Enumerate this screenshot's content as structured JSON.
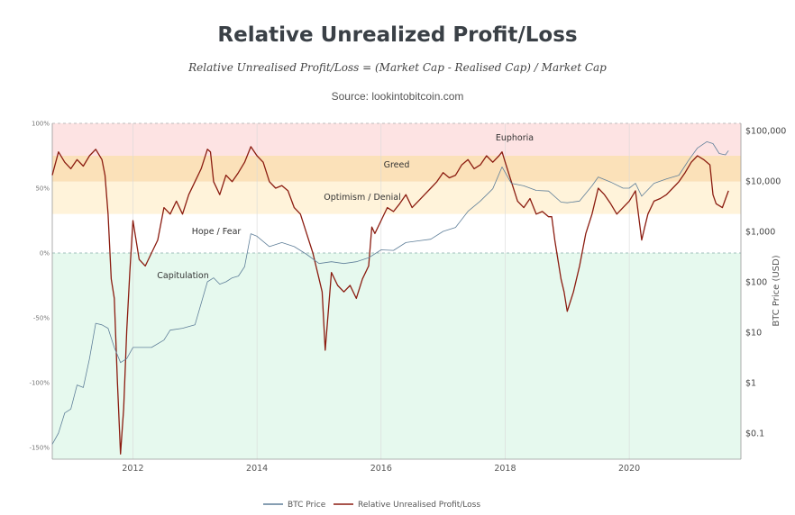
{
  "header": {
    "title": "Relative Unrealized Profit/Loss",
    "formula": "Relative Unrealised Profit/Loss = (Market Cap - Realised Cap) / Market Cap",
    "source": "Source: lookintobitcoin.com"
  },
  "chart_data": {
    "type": "line",
    "xlim": [
      2010.7,
      2021.8
    ],
    "x_ticks": [
      "2012",
      "2014",
      "2016",
      "2018",
      "2020"
    ],
    "y_left": {
      "range": [
        -160,
        100
      ],
      "ticks": [
        "100%",
        "50%",
        "0%",
        "-50%",
        "-100%",
        "-150%"
      ]
    },
    "y_right": {
      "label": "BTC Price (USD)",
      "log_scale": true,
      "range": [
        0.03,
        150000
      ],
      "ticks": [
        "$100,000",
        "$10,000",
        "$1,000",
        "$100",
        "$10",
        "$1",
        "$0.1"
      ]
    },
    "zones": [
      {
        "name": "Euphoria",
        "from": 75,
        "to": 100,
        "color": "#fde3e3"
      },
      {
        "name": "Greed",
        "from": 55,
        "to": 75,
        "color": "#fbe1b9"
      },
      {
        "name": "Optimism / Denial",
        "from": 30,
        "to": 55,
        "color": "#fff3da"
      },
      {
        "name": "Hope / Fear",
        "from": 0,
        "to": 30,
        "color": "#ffffff"
      },
      {
        "name": "Capitulation",
        "from": -160,
        "to": 0,
        "color": "#e6f9ee"
      }
    ],
    "legend": {
      "position": "bottom",
      "items": [
        "BTC Price",
        "Relative Unrealised Profit/Loss"
      ]
    },
    "series": [
      {
        "name": "Relative Unrealised Profit/Loss",
        "axis": "left",
        "color": "#8b1c10",
        "points": [
          [
            2010.7,
            60
          ],
          [
            2010.8,
            78
          ],
          [
            2010.9,
            70
          ],
          [
            2011.0,
            65
          ],
          [
            2011.1,
            72
          ],
          [
            2011.2,
            67
          ],
          [
            2011.3,
            75
          ],
          [
            2011.4,
            80
          ],
          [
            2011.5,
            72
          ],
          [
            2011.55,
            60
          ],
          [
            2011.6,
            30
          ],
          [
            2011.65,
            -20
          ],
          [
            2011.7,
            -35
          ],
          [
            2011.75,
            -100
          ],
          [
            2011.8,
            -155
          ],
          [
            2011.85,
            -120
          ],
          [
            2011.9,
            -60
          ],
          [
            2011.95,
            -15
          ],
          [
            2012.0,
            25
          ],
          [
            2012.1,
            -5
          ],
          [
            2012.2,
            -10
          ],
          [
            2012.3,
            0
          ],
          [
            2012.4,
            10
          ],
          [
            2012.5,
            35
          ],
          [
            2012.6,
            30
          ],
          [
            2012.7,
            40
          ],
          [
            2012.8,
            30
          ],
          [
            2012.9,
            45
          ],
          [
            2013.0,
            55
          ],
          [
            2013.1,
            65
          ],
          [
            2013.2,
            80
          ],
          [
            2013.25,
            78
          ],
          [
            2013.3,
            55
          ],
          [
            2013.4,
            45
          ],
          [
            2013.5,
            60
          ],
          [
            2013.6,
            55
          ],
          [
            2013.7,
            62
          ],
          [
            2013.8,
            70
          ],
          [
            2013.9,
            82
          ],
          [
            2014.0,
            75
          ],
          [
            2014.1,
            70
          ],
          [
            2014.2,
            55
          ],
          [
            2014.3,
            50
          ],
          [
            2014.4,
            52
          ],
          [
            2014.5,
            48
          ],
          [
            2014.6,
            35
          ],
          [
            2014.7,
            30
          ],
          [
            2014.8,
            15
          ],
          [
            2014.9,
            0
          ],
          [
            2015.0,
            -20
          ],
          [
            2015.05,
            -30
          ],
          [
            2015.1,
            -75
          ],
          [
            2015.2,
            -15
          ],
          [
            2015.3,
            -25
          ],
          [
            2015.4,
            -30
          ],
          [
            2015.5,
            -25
          ],
          [
            2015.6,
            -35
          ],
          [
            2015.7,
            -20
          ],
          [
            2015.8,
            -10
          ],
          [
            2015.85,
            20
          ],
          [
            2015.9,
            15
          ],
          [
            2016.0,
            25
          ],
          [
            2016.1,
            35
          ],
          [
            2016.2,
            32
          ],
          [
            2016.3,
            38
          ],
          [
            2016.4,
            45
          ],
          [
            2016.5,
            35
          ],
          [
            2016.6,
            40
          ],
          [
            2016.7,
            45
          ],
          [
            2016.8,
            50
          ],
          [
            2016.9,
            55
          ],
          [
            2017.0,
            62
          ],
          [
            2017.1,
            58
          ],
          [
            2017.2,
            60
          ],
          [
            2017.3,
            68
          ],
          [
            2017.4,
            72
          ],
          [
            2017.5,
            65
          ],
          [
            2017.6,
            68
          ],
          [
            2017.7,
            75
          ],
          [
            2017.8,
            70
          ],
          [
            2017.9,
            75
          ],
          [
            2017.95,
            78
          ],
          [
            2018.0,
            70
          ],
          [
            2018.1,
            55
          ],
          [
            2018.2,
            40
          ],
          [
            2018.3,
            35
          ],
          [
            2018.4,
            42
          ],
          [
            2018.5,
            30
          ],
          [
            2018.6,
            32
          ],
          [
            2018.7,
            28
          ],
          [
            2018.75,
            28
          ],
          [
            2018.8,
            10
          ],
          [
            2018.9,
            -20
          ],
          [
            2018.95,
            -30
          ],
          [
            2019.0,
            -45
          ],
          [
            2019.1,
            -30
          ],
          [
            2019.2,
            -10
          ],
          [
            2019.3,
            15
          ],
          [
            2019.4,
            30
          ],
          [
            2019.5,
            50
          ],
          [
            2019.6,
            45
          ],
          [
            2019.7,
            38
          ],
          [
            2019.8,
            30
          ],
          [
            2019.9,
            35
          ],
          [
            2020.0,
            40
          ],
          [
            2020.1,
            48
          ],
          [
            2020.2,
            10
          ],
          [
            2020.25,
            20
          ],
          [
            2020.3,
            30
          ],
          [
            2020.4,
            40
          ],
          [
            2020.5,
            42
          ],
          [
            2020.6,
            45
          ],
          [
            2020.7,
            50
          ],
          [
            2020.8,
            55
          ],
          [
            2020.9,
            62
          ],
          [
            2021.0,
            70
          ],
          [
            2021.1,
            75
          ],
          [
            2021.2,
            72
          ],
          [
            2021.3,
            68
          ],
          [
            2021.35,
            45
          ],
          [
            2021.4,
            38
          ],
          [
            2021.5,
            35
          ],
          [
            2021.6,
            48
          ]
        ]
      },
      {
        "name": "BTC Price",
        "axis": "right",
        "color": "#5f7f99",
        "points": [
          [
            2010.7,
            0.06
          ],
          [
            2010.8,
            0.1
          ],
          [
            2010.9,
            0.25
          ],
          [
            2011.0,
            0.3
          ],
          [
            2011.1,
            0.9
          ],
          [
            2011.2,
            0.8
          ],
          [
            2011.3,
            3
          ],
          [
            2011.4,
            15
          ],
          [
            2011.5,
            14
          ],
          [
            2011.6,
            12
          ],
          [
            2011.7,
            5
          ],
          [
            2011.8,
            2.5
          ],
          [
            2011.9,
            3
          ],
          [
            2012.0,
            5
          ],
          [
            2012.1,
            5
          ],
          [
            2012.3,
            5
          ],
          [
            2012.5,
            7
          ],
          [
            2012.6,
            11
          ],
          [
            2012.8,
            12
          ],
          [
            2013.0,
            14
          ],
          [
            2013.2,
            100
          ],
          [
            2013.3,
            120
          ],
          [
            2013.4,
            90
          ],
          [
            2013.5,
            100
          ],
          [
            2013.6,
            120
          ],
          [
            2013.7,
            130
          ],
          [
            2013.8,
            200
          ],
          [
            2013.9,
            900
          ],
          [
            2014.0,
            800
          ],
          [
            2014.2,
            500
          ],
          [
            2014.4,
            600
          ],
          [
            2014.6,
            500
          ],
          [
            2014.8,
            350
          ],
          [
            2015.0,
            230
          ],
          [
            2015.2,
            250
          ],
          [
            2015.4,
            230
          ],
          [
            2015.6,
            250
          ],
          [
            2015.8,
            300
          ],
          [
            2016.0,
            430
          ],
          [
            2016.2,
            420
          ],
          [
            2016.4,
            600
          ],
          [
            2016.6,
            650
          ],
          [
            2016.8,
            700
          ],
          [
            2017.0,
            1000
          ],
          [
            2017.2,
            1200
          ],
          [
            2017.4,
            2500
          ],
          [
            2017.6,
            4000
          ],
          [
            2017.8,
            7000
          ],
          [
            2017.95,
            19000
          ],
          [
            2018.1,
            9000
          ],
          [
            2018.3,
            8000
          ],
          [
            2018.5,
            6500
          ],
          [
            2018.7,
            6300
          ],
          [
            2018.9,
            3800
          ],
          [
            2019.0,
            3700
          ],
          [
            2019.2,
            4000
          ],
          [
            2019.4,
            8000
          ],
          [
            2019.5,
            12000
          ],
          [
            2019.7,
            9500
          ],
          [
            2019.9,
            7200
          ],
          [
            2020.0,
            7200
          ],
          [
            2020.1,
            9000
          ],
          [
            2020.2,
            5000
          ],
          [
            2020.4,
            9000
          ],
          [
            2020.6,
            11000
          ],
          [
            2020.8,
            13000
          ],
          [
            2020.95,
            25000
          ],
          [
            2021.1,
            45000
          ],
          [
            2021.25,
            60000
          ],
          [
            2021.35,
            55000
          ],
          [
            2021.45,
            35000
          ],
          [
            2021.55,
            33000
          ],
          [
            2021.6,
            40000
          ]
        ]
      }
    ]
  }
}
